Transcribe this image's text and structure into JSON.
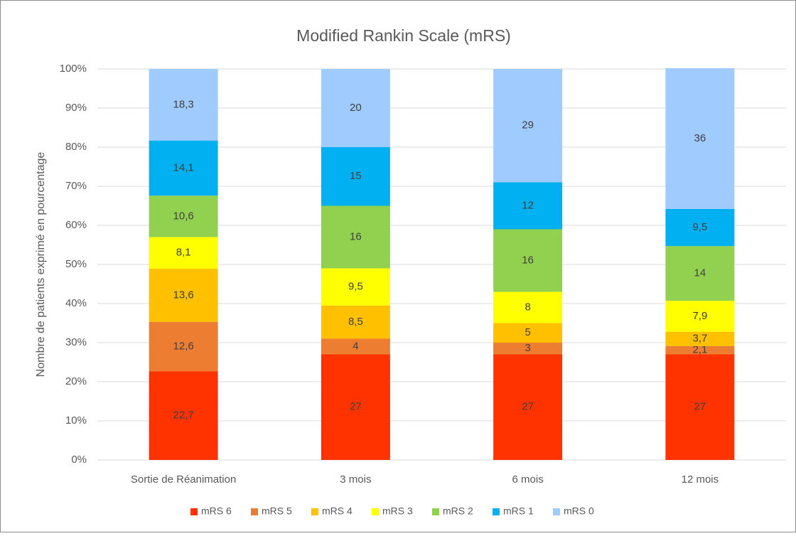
{
  "chart_data": {
    "type": "stacked_bar",
    "title": "Modified Rankin Scale (mRS)",
    "y_label": "Nombre de patients exprimé en pourcentage",
    "categories": [
      "Sortie de Réanimation",
      "3 mois",
      "6 mois",
      "12 mois"
    ],
    "series": [
      {
        "name": "mRS 6",
        "color": "#ff3300",
        "values": [
          22.7,
          27,
          27,
          27
        ],
        "value_labels": [
          "22,7",
          "27",
          "27",
          "27"
        ]
      },
      {
        "name": "mRS 5",
        "color": "#ed7d31",
        "values": [
          12.6,
          4,
          3,
          2.1
        ],
        "value_labels": [
          "12,6",
          "4",
          "3",
          "2,1"
        ]
      },
      {
        "name": "mRS 4",
        "color": "#ffc000",
        "values": [
          13.6,
          8.5,
          5,
          3.7
        ],
        "value_labels": [
          "13,6",
          "8,5",
          "5",
          "3,7"
        ]
      },
      {
        "name": "mRS 3",
        "color": "#ffff00",
        "values": [
          8.1,
          9.5,
          8,
          7.9
        ],
        "value_labels": [
          "8,1",
          "9,5",
          "8",
          "7,9"
        ]
      },
      {
        "name": "mRS 2",
        "color": "#92d050",
        "values": [
          10.6,
          16,
          16,
          14
        ],
        "value_labels": [
          "10,6",
          "16",
          "16",
          "14"
        ]
      },
      {
        "name": "mRS 1",
        "color": "#00b0f0",
        "values": [
          14.1,
          15,
          12,
          9.5
        ],
        "value_labels": [
          "14,1",
          "15",
          "12",
          "9,5"
        ]
      },
      {
        "name": "mRS 0",
        "color": "#9fcbff",
        "values": [
          18.3,
          20,
          29,
          36
        ],
        "value_labels": [
          "18,3",
          "20",
          "29",
          "36"
        ]
      }
    ],
    "ylim": [
      0,
      100
    ],
    "yticks": [
      {
        "value": 0,
        "label": "0%"
      },
      {
        "value": 10,
        "label": "10%"
      },
      {
        "value": 20,
        "label": "20%"
      },
      {
        "value": 30,
        "label": "30%"
      },
      {
        "value": 40,
        "label": "40%"
      },
      {
        "value": 50,
        "label": "50%"
      },
      {
        "value": 60,
        "label": "60%"
      },
      {
        "value": 70,
        "label": "70%"
      },
      {
        "value": 80,
        "label": "80%"
      },
      {
        "value": 90,
        "label": "90%"
      },
      {
        "value": 100,
        "label": "100%"
      }
    ],
    "grid": true,
    "legend": "bottom"
  }
}
